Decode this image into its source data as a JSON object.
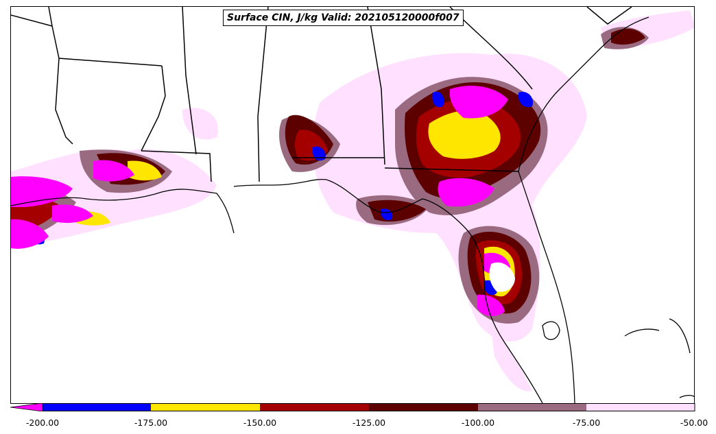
{
  "map": {
    "title": "Surface CIN, J/kg Valid: 202105120000f007",
    "region": "Southeastern United States (Gulf Coast)",
    "variable": "Surface CIN",
    "units": "J/kg",
    "valid_time": "202105120000f007"
  },
  "legend": {
    "colors": {
      "below_-200": "#ff00ff",
      "-200_-175": "#0000ff",
      "-175_-150": "#ffe600",
      "-150_-125": "#a50000",
      "-125_-100": "#5c0000",
      "-100_-75": "#9a6a80",
      "-75_-50": "#ffe0ff"
    },
    "ticks": [
      "-200.00",
      "-175.00",
      "-150.00",
      "-125.00",
      "-100.00",
      "-75.00",
      "-50.00"
    ]
  }
}
